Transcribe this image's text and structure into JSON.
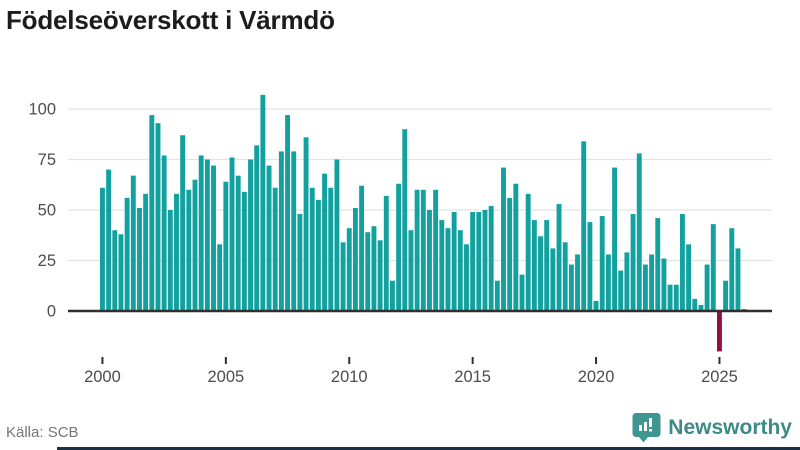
{
  "title": "Födelseöverskott i Värmdö",
  "source": "Källa: SCB",
  "branding": {
    "wordmark": "Newsworthy",
    "icon": "newsworthy-pin-barchart-icon",
    "icon_color": "#3f958f",
    "wordmark_color": "#3d8b87"
  },
  "chart_data": {
    "type": "bar",
    "title": "Födelseöverskott i Värmdö",
    "frequency": "quarterly",
    "start": "2000-Q1",
    "x_tick_years": [
      2000,
      2005,
      2010,
      2015,
      2020,
      2025
    ],
    "y_ticks": [
      0,
      25,
      50,
      75,
      100
    ],
    "ylim": [
      -25,
      110
    ],
    "grid": "horizontal",
    "legend": "none",
    "bar_color": "#12a19e",
    "negative_highlight_color": "#8e1045",
    "values": [
      61,
      70,
      40,
      38,
      56,
      67,
      51,
      58,
      97,
      93,
      77,
      50,
      58,
      87,
      60,
      65,
      77,
      75,
      72,
      33,
      64,
      76,
      67,
      59,
      75,
      82,
      107,
      72,
      61,
      79,
      97,
      79,
      48,
      86,
      61,
      55,
      68,
      61,
      75,
      34,
      41,
      51,
      62,
      39,
      42,
      35,
      57,
      15,
      63,
      90,
      40,
      60,
      60,
      50,
      60,
      45,
      41,
      49,
      40,
      33,
      49,
      49,
      50,
      52,
      15,
      71,
      56,
      63,
      18,
      58,
      45,
      37,
      45,
      31,
      53,
      34,
      23,
      28,
      84,
      44,
      5,
      47,
      28,
      71,
      20,
      29,
      48,
      78,
      23,
      28,
      46,
      26,
      13,
      13,
      48,
      33,
      6,
      3,
      23,
      43,
      -20,
      15,
      41,
      31,
      1
    ]
  }
}
